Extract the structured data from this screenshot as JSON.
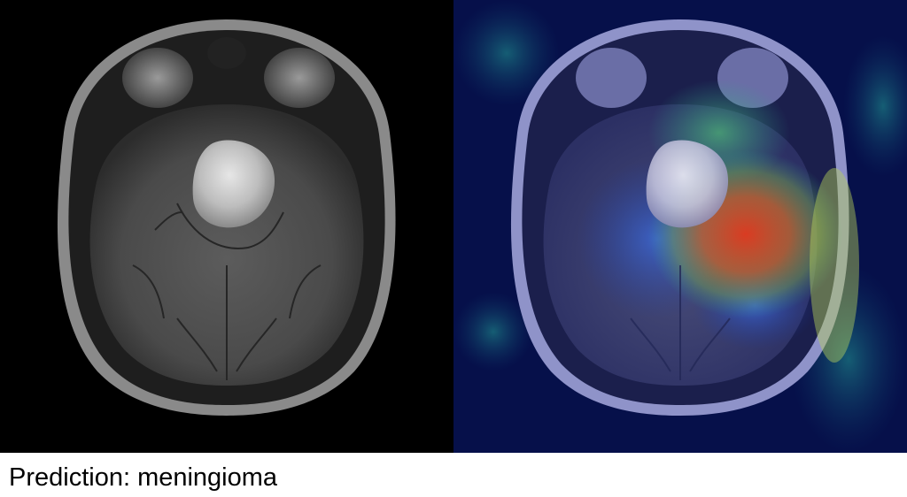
{
  "caption": {
    "prediction_label": "Prediction: meningioma"
  },
  "panels": {
    "left": {
      "kind": "mri-axial-t1-slice"
    },
    "right": {
      "kind": "mri-slice-with-activation-heatmap-overlay",
      "colormap": "jet"
    }
  },
  "colors": {
    "background": "#ffffff",
    "caption_text": "#000000",
    "image_background": "#000000",
    "heatmap_low": "#06104a",
    "heatmap_mid": "#2fa58f",
    "heatmap_high": "#e23b1e"
  }
}
